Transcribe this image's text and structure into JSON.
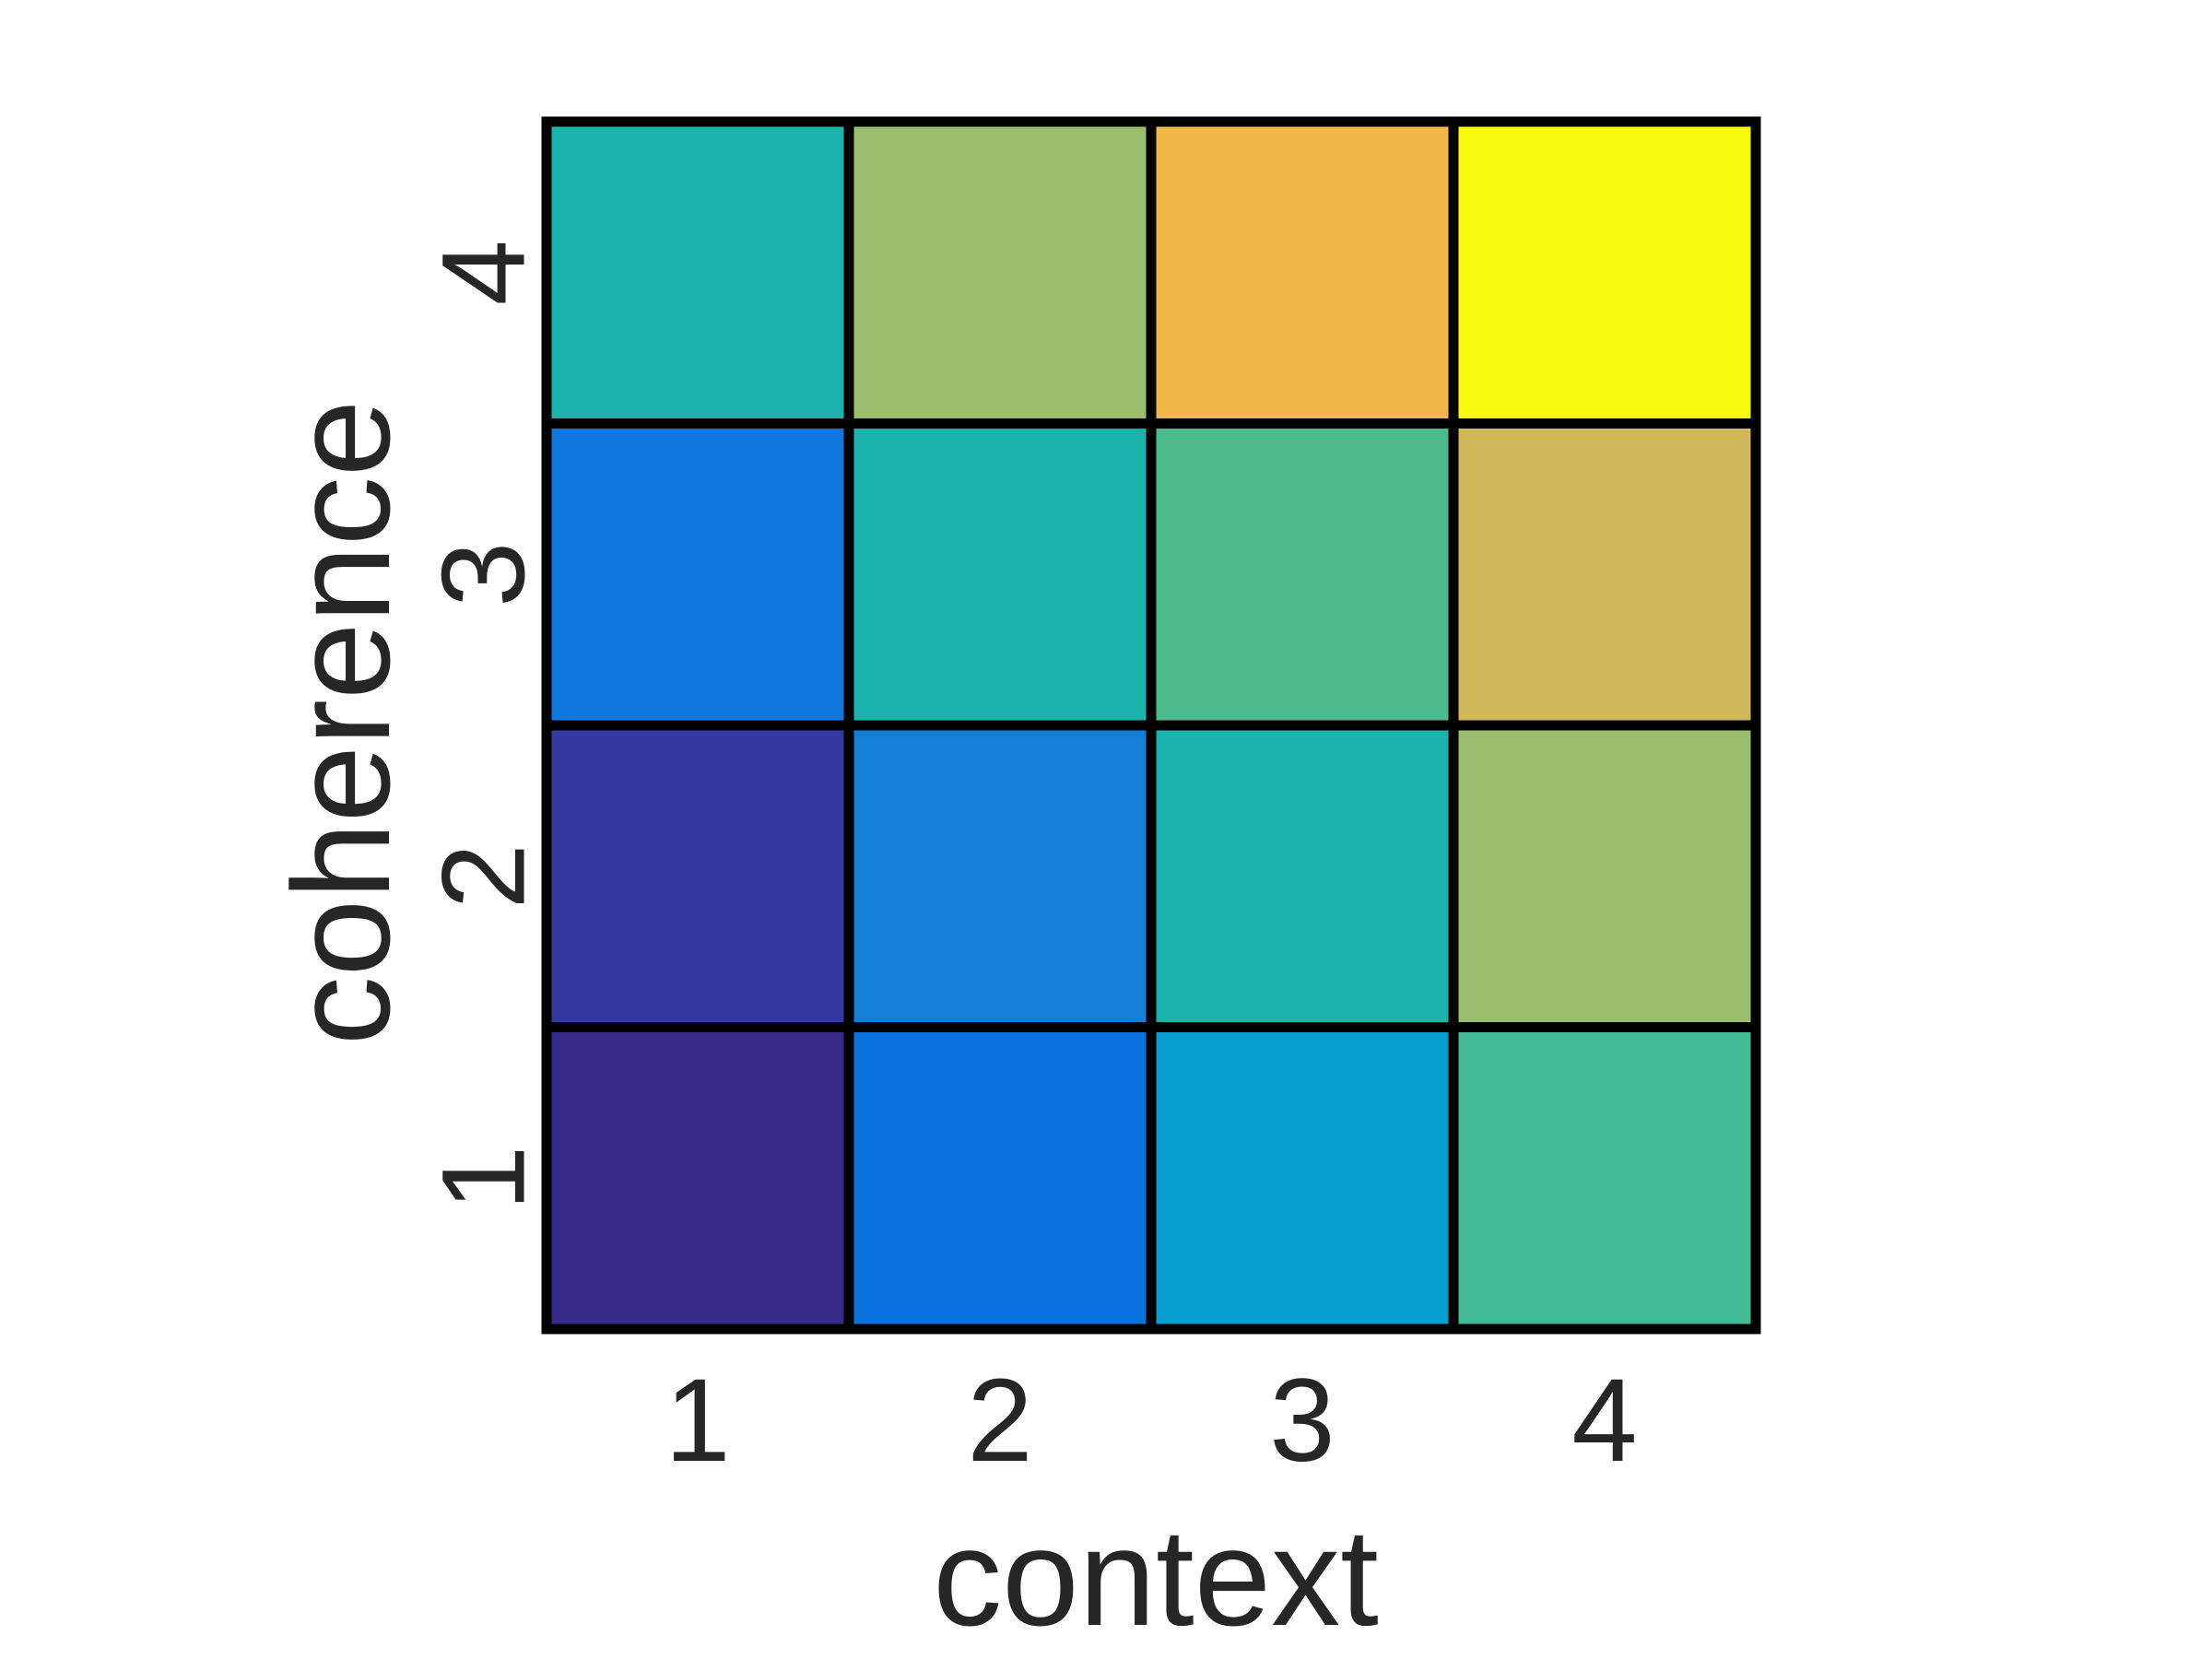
{
  "chart_data": {
    "type": "heatmap",
    "title": "",
    "xlabel": "context",
    "ylabel": "coherence",
    "x_categories": [
      "1",
      "2",
      "3",
      "4"
    ],
    "y_categories": [
      "1",
      "2",
      "3",
      "4"
    ],
    "values": [
      [
        1,
        2,
        3,
        4
      ],
      [
        1.5,
        2.5,
        4,
        5
      ],
      [
        2.5,
        4,
        4.5,
        5.5
      ],
      [
        4,
        5,
        6,
        7
      ]
    ],
    "colormap": "parula",
    "cell_colors": [
      [
        "#352A87",
        "#0A72DE",
        "#089FD0",
        "#42BB95"
      ],
      [
        "#35389F",
        "#157ED6",
        "#1CB3AD",
        "#9BBE6E"
      ],
      [
        "#0F77DE",
        "#1CB3AD",
        "#4EBB8F",
        "#D1B95B"
      ],
      [
        "#1CB3AD",
        "#9BBE6E",
        "#F0B84A",
        "#F8FA0D"
      ]
    ],
    "grid": true,
    "legend": "none"
  }
}
